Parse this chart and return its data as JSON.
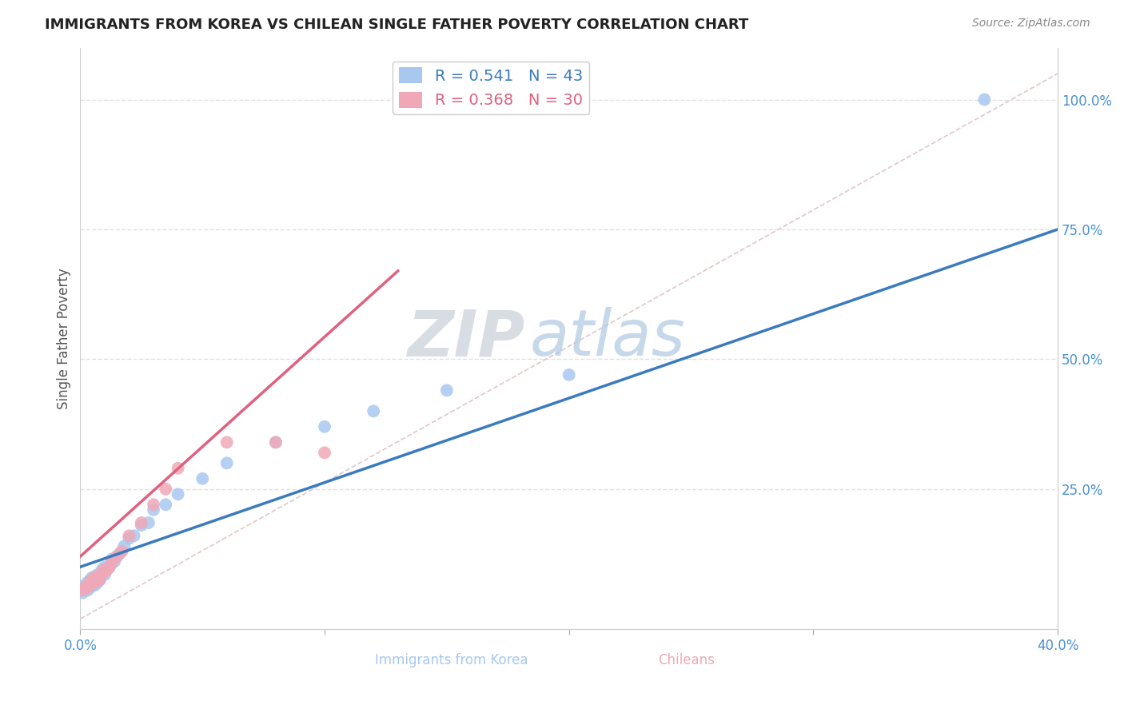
{
  "title": "IMMIGRANTS FROM KOREA VS CHILEAN SINGLE FATHER POVERTY CORRELATION CHART",
  "source": "Source: ZipAtlas.com",
  "xlabel_korea": "Immigrants from Korea",
  "xlabel_chilean": "Chileans",
  "ylabel": "Single Father Poverty",
  "xlim": [
    0.0,
    0.4
  ],
  "ylim": [
    -0.02,
    1.1
  ],
  "xticks": [
    0.0,
    0.1,
    0.2,
    0.3,
    0.4
  ],
  "xtick_labels_show": [
    "0.0%",
    "",
    "",
    "",
    "40.0%"
  ],
  "yticks": [
    0.25,
    0.5,
    0.75,
    1.0
  ],
  "ytick_labels": [
    "25.0%",
    "50.0%",
    "75.0%",
    "100.0%"
  ],
  "korea_R": 0.541,
  "korea_N": 43,
  "chilean_R": 0.368,
  "chilean_N": 30,
  "korea_color": "#a8c8f0",
  "chilean_color": "#f0a8b8",
  "korea_line_color": "#3a7abf",
  "chilean_line_color": "#e06080",
  "diagonal_line_color": "#e0c8c8",
  "grid_color": "#e0e0e0",
  "watermark_zip": "ZIP",
  "watermark_atlas": "atlas",
  "background_color": "#ffffff",
  "korea_x": [
    0.001,
    0.002,
    0.002,
    0.003,
    0.003,
    0.004,
    0.004,
    0.005,
    0.005,
    0.005,
    0.006,
    0.006,
    0.007,
    0.007,
    0.008,
    0.008,
    0.009,
    0.009,
    0.01,
    0.01,
    0.011,
    0.012,
    0.013,
    0.014,
    0.015,
    0.016,
    0.017,
    0.018,
    0.02,
    0.022,
    0.025,
    0.028,
    0.03,
    0.035,
    0.04,
    0.05,
    0.06,
    0.08,
    0.1,
    0.12,
    0.15,
    0.2,
    0.37
  ],
  "korea_y": [
    0.05,
    0.06,
    0.065,
    0.055,
    0.07,
    0.06,
    0.075,
    0.065,
    0.07,
    0.08,
    0.065,
    0.075,
    0.07,
    0.085,
    0.075,
    0.08,
    0.09,
    0.095,
    0.085,
    0.1,
    0.095,
    0.1,
    0.115,
    0.11,
    0.12,
    0.125,
    0.13,
    0.14,
    0.155,
    0.16,
    0.18,
    0.185,
    0.21,
    0.22,
    0.24,
    0.27,
    0.3,
    0.34,
    0.37,
    0.4,
    0.44,
    0.47,
    1.0
  ],
  "chilean_x": [
    0.001,
    0.002,
    0.003,
    0.003,
    0.004,
    0.004,
    0.005,
    0.005,
    0.006,
    0.006,
    0.007,
    0.007,
    0.008,
    0.008,
    0.009,
    0.01,
    0.01,
    0.011,
    0.012,
    0.013,
    0.015,
    0.017,
    0.02,
    0.025,
    0.03,
    0.035,
    0.04,
    0.06,
    0.08,
    0.1
  ],
  "chilean_y": [
    0.055,
    0.06,
    0.06,
    0.065,
    0.065,
    0.07,
    0.07,
    0.075,
    0.07,
    0.08,
    0.075,
    0.08,
    0.075,
    0.085,
    0.09,
    0.09,
    0.095,
    0.095,
    0.1,
    0.11,
    0.12,
    0.13,
    0.16,
    0.185,
    0.22,
    0.25,
    0.29,
    0.34,
    0.34,
    0.32
  ],
  "korea_line_x0": 0.0,
  "korea_line_y0": 0.1,
  "korea_line_x1": 0.4,
  "korea_line_y1": 0.75,
  "chilean_line_x0": 0.0,
  "chilean_line_y0": 0.12,
  "chilean_line_x1": 0.13,
  "chilean_line_y1": 0.67,
  "title_fontsize": 13,
  "axis_label_fontsize": 12,
  "tick_fontsize": 12,
  "legend_fontsize": 14
}
